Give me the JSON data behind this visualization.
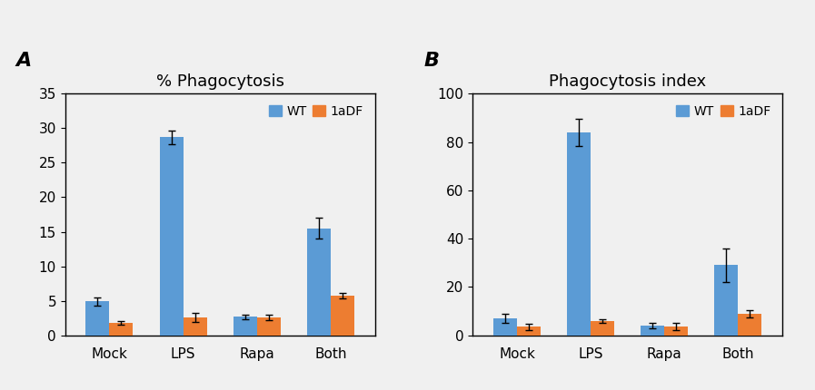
{
  "panel_A": {
    "title": "% Phagocytosis",
    "categories": [
      "Mock",
      "LPS",
      "Rapa",
      "Both"
    ],
    "WT_values": [
      4.9,
      28.7,
      2.7,
      15.5
    ],
    "WT_errors": [
      0.6,
      1.0,
      0.3,
      1.5
    ],
    "1aDF_values": [
      1.8,
      2.6,
      2.6,
      5.7
    ],
    "1aDF_errors": [
      0.3,
      0.7,
      0.4,
      0.4
    ],
    "ylim": [
      0,
      35
    ],
    "yticks": [
      0,
      5,
      10,
      15,
      20,
      25,
      30,
      35
    ]
  },
  "panel_B": {
    "title": "Phagocytosis index",
    "categories": [
      "Mock",
      "LPS",
      "Rapa",
      "Both"
    ],
    "WT_values": [
      7.0,
      84.0,
      4.0,
      29.0
    ],
    "WT_errors": [
      2.0,
      5.5,
      1.2,
      7.0
    ],
    "1aDF_values": [
      3.5,
      6.0,
      3.5,
      9.0
    ],
    "1aDF_errors": [
      1.2,
      0.8,
      1.5,
      1.5
    ],
    "ylim": [
      0,
      100
    ],
    "yticks": [
      0,
      20,
      40,
      60,
      80,
      100
    ]
  },
  "WT_color": "#5B9BD5",
  "1aDF_color": "#ED7D31",
  "bar_width": 0.32,
  "label_A": "A",
  "label_B": "B",
  "bg_color": "#f0f0f0",
  "axes_bg": "#f0f0f0"
}
